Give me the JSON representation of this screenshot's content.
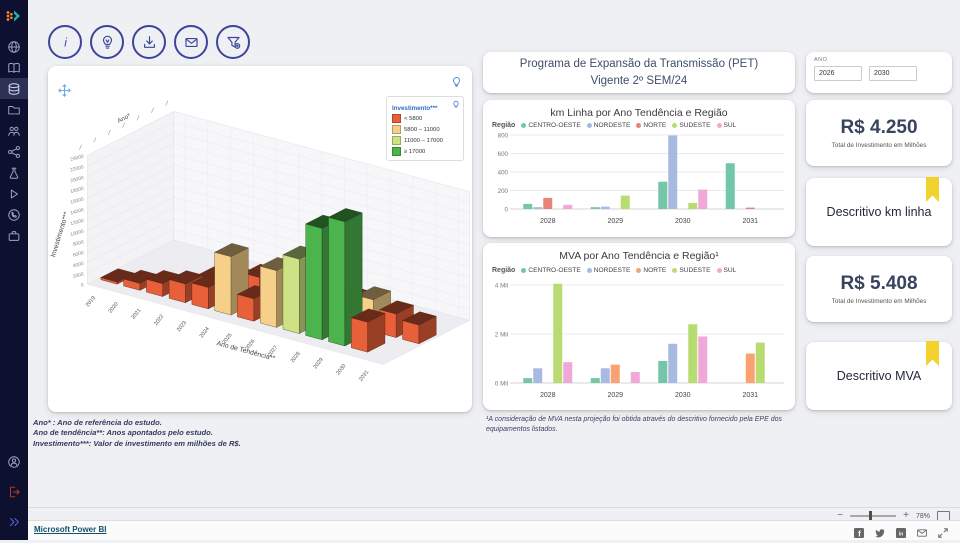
{
  "window": {
    "zoom_percent": "78%",
    "zoom_out": "−",
    "zoom_in": "+"
  },
  "footer": {
    "brand": "Microsoft Power BI",
    "social_icons": [
      "facebook",
      "twitter",
      "linkedin",
      "mail",
      "fullscreen"
    ]
  },
  "sidebar": {
    "items": [
      {
        "icon": "globe"
      },
      {
        "icon": "library"
      },
      {
        "icon": "database",
        "active": true
      },
      {
        "icon": "folder"
      },
      {
        "icon": "users"
      },
      {
        "icon": "share"
      },
      {
        "icon": "flask"
      },
      {
        "icon": "play"
      },
      {
        "icon": "whatsapp"
      },
      {
        "icon": "briefcase"
      }
    ],
    "bottom_items": [
      {
        "icon": "account"
      },
      {
        "icon": "logout"
      },
      {
        "icon": "expand"
      }
    ]
  },
  "toolbar": {
    "buttons": [
      {
        "icon": "info"
      },
      {
        "icon": "idea"
      },
      {
        "icon": "download"
      },
      {
        "icon": "mail"
      },
      {
        "icon": "filter-settings"
      }
    ]
  },
  "footnotes_left": [
    "Ano* : Ano de referência do estudo.",
    "Ano de tendência**: Anos apontados pelo estudo.",
    "Investimento***: Valor de investimento em milhões de R$."
  ],
  "panel_title": {
    "line1": "Programa de Expansão da Transmissão (PET)",
    "line2": "Vigente 2º SEM/24"
  },
  "panel_footnote": "¹A consideração de MVA nesta projeção foi obtida através do descritivo fornecido pela EPE dos equipamentos listados.",
  "right_column": {
    "ano_label": "ANO",
    "ano_values": [
      "2026",
      "2030"
    ],
    "kpi_cards": [
      {
        "value": "R$ 4.250",
        "subtitle": "Total de Investimento em Milhões"
      },
      {
        "value": "R$ 5.408",
        "subtitle": "Total de Investimento em Milhões"
      }
    ],
    "buttons": [
      {
        "label": "Descritivo km linha"
      },
      {
        "label": "Descritivo MVA"
      }
    ]
  },
  "chart_data": [
    {
      "id": "invest3d",
      "type": "bar",
      "variant": "3d-column",
      "xlabel": "Ano de Tendência**",
      "ylabel": "Investimento***",
      "depth_label": "Ano*",
      "x": [
        2019,
        2020,
        2021,
        2022,
        2023,
        2024,
        2025,
        2026,
        2027,
        2028,
        2029,
        2030,
        2031
      ],
      "ylim": [
        0,
        24000
      ],
      "ytick_step": 2000,
      "legend_title": "Investimento***",
      "legend": [
        {
          "label": "< 5800",
          "color": "#e8603a"
        },
        {
          "label": "5800 – 11000",
          "color": "#f6d089"
        },
        {
          "label": "11000 – 17000",
          "color": "#cde284"
        },
        {
          "label": "≥ 17000",
          "color": "#4cb44c"
        }
      ],
      "color_thresholds": [
        5800,
        11000,
        17000
      ],
      "series": [
        {
          "name": "back-row",
          "values": [
            0,
            0,
            0,
            1600,
            2700,
            4300,
            3200,
            4400,
            3700,
            4800,
            5900,
            4400,
            3500
          ]
        },
        {
          "name": "front-row",
          "values": [
            400,
            1300,
            2400,
            3500,
            4000,
            10900,
            4200,
            10600,
            13900,
            20800,
            23200,
            5600,
            0
          ]
        }
      ]
    },
    {
      "id": "km",
      "type": "bar",
      "title": "km Linha por Ano Tendência e Região",
      "legend_label": "Região",
      "categories": [
        "2028",
        "2029",
        "2030",
        "2031"
      ],
      "ylim": [
        0,
        800
      ],
      "yticks": [
        0,
        200,
        400,
        600,
        800
      ],
      "ytick_labels": [
        "0",
        "200",
        "400",
        "600",
        "800"
      ],
      "series": [
        {
          "name": "CENTRO-OESTE",
          "color": "#74c6a8",
          "values": [
            55,
            20,
            295,
            495
          ]
        },
        {
          "name": "NORDESTE",
          "color": "#a8b9e2",
          "values": [
            20,
            25,
            795,
            0
          ]
        },
        {
          "name": "NORTE",
          "color": "#e8837a",
          "values": [
            120,
            0,
            0,
            15
          ]
        },
        {
          "name": "SUDESTE",
          "color": "#b9dc72",
          "values": [
            0,
            145,
            65,
            0
          ]
        },
        {
          "name": "SUL",
          "color": "#f0a8d8",
          "values": [
            45,
            0,
            210,
            0
          ]
        }
      ]
    },
    {
      "id": "mva",
      "type": "bar",
      "title": "MVA por Ano Tendência e Região¹",
      "legend_label": "Região",
      "categories": [
        "2028",
        "2029",
        "2030",
        "2031"
      ],
      "ylim": [
        0,
        4000
      ],
      "yticks": [
        0,
        2000,
        4000
      ],
      "ytick_labels": [
        "0 Mil",
        "2 Mil",
        "4 Mil"
      ],
      "series": [
        {
          "name": "CENTRO-OESTE",
          "color": "#74c6a8",
          "values": [
            200,
            200,
            900,
            0
          ]
        },
        {
          "name": "NORDESTE",
          "color": "#a8b9e2",
          "values": [
            600,
            600,
            1600,
            0
          ]
        },
        {
          "name": "NORTE",
          "color": "#f9a171",
          "values": [
            0,
            750,
            0,
            1200
          ]
        },
        {
          "name": "SUDESTE",
          "color": "#b9dc72",
          "values": [
            4050,
            0,
            2400,
            1650
          ]
        },
        {
          "name": "SUL",
          "color": "#f0a8d8",
          "values": [
            850,
            450,
            1900,
            0
          ]
        }
      ]
    }
  ]
}
